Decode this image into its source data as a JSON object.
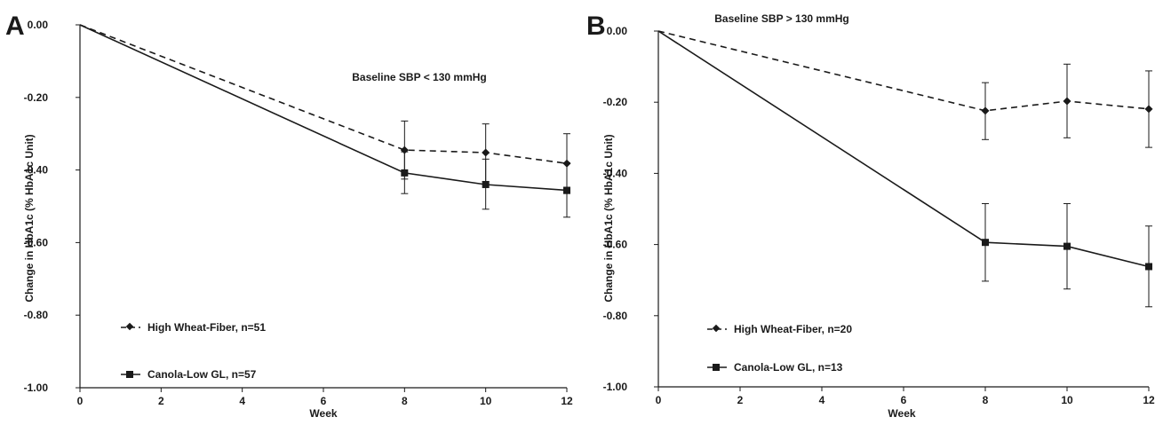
{
  "chart_data": [
    {
      "panel": "A",
      "type": "line",
      "annotation": "Baseline SBP < 130 mmHg",
      "xlabel": "Week",
      "ylabel": "Change in HbA1c (% HbA1c Unit)",
      "xlim": [
        0,
        12
      ],
      "ylim": [
        -1.0,
        0.0
      ],
      "x_ticks": [
        "0",
        "2",
        "4",
        "6",
        "8",
        "10",
        "12"
      ],
      "y_ticks": [
        "0.00",
        "-0.20",
        "-0.40",
        "-0.60",
        "-0.80",
        "-1.00"
      ],
      "x": [
        0,
        8,
        10,
        12
      ],
      "series": [
        {
          "name": "High Wheat-Fiber, n=51",
          "line": "dashed",
          "marker": "diamond",
          "values": [
            0.0,
            -0.345,
            -0.352,
            -0.382
          ],
          "err_upper": [
            null,
            -0.265,
            -0.273,
            -0.3
          ],
          "err_lower": [
            null,
            -0.425,
            -0.432,
            -0.465
          ]
        },
        {
          "name": "Canola-Low GL, n=57",
          "line": "solid",
          "marker": "square",
          "values": [
            0.0,
            -0.408,
            -0.44,
            -0.456
          ],
          "err_upper": [
            null,
            -0.35,
            -0.37,
            -0.38
          ],
          "err_lower": [
            null,
            -0.465,
            -0.508,
            -0.53
          ]
        }
      ],
      "legend_position": "bottom-left",
      "grid": false
    },
    {
      "panel": "B",
      "type": "line",
      "annotation": "Baseline SBP > 130 mmHg",
      "xlabel": "Week",
      "ylabel": "Change in HbA1c (% HbA1c Unit)",
      "xlim": [
        0,
        12
      ],
      "ylim": [
        -1.0,
        0.0
      ],
      "x_ticks": [
        "0",
        "2",
        "4",
        "6",
        "8",
        "10",
        "12"
      ],
      "y_ticks": [
        "0.00",
        "-0.20",
        "-0.40",
        "-0.60",
        "-0.80",
        "-1.00"
      ],
      "x": [
        0,
        8,
        10,
        12
      ],
      "series": [
        {
          "name": "High Wheat-Fiber, n=20",
          "line": "dashed",
          "marker": "diamond",
          "values": [
            0.0,
            -0.224,
            -0.197,
            -0.219
          ],
          "err_upper": [
            null,
            -0.145,
            -0.093,
            -0.112
          ],
          "err_lower": [
            null,
            -0.305,
            -0.3,
            -0.327
          ]
        },
        {
          "name": "Canola-Low GL, n=13",
          "line": "solid",
          "marker": "square",
          "values": [
            0.0,
            -0.594,
            -0.605,
            -0.662
          ],
          "err_upper": [
            null,
            -0.485,
            -0.485,
            -0.548
          ],
          "err_lower": [
            null,
            -0.703,
            -0.725,
            -0.775
          ]
        }
      ],
      "legend_position": "bottom-left",
      "grid": false
    }
  ]
}
